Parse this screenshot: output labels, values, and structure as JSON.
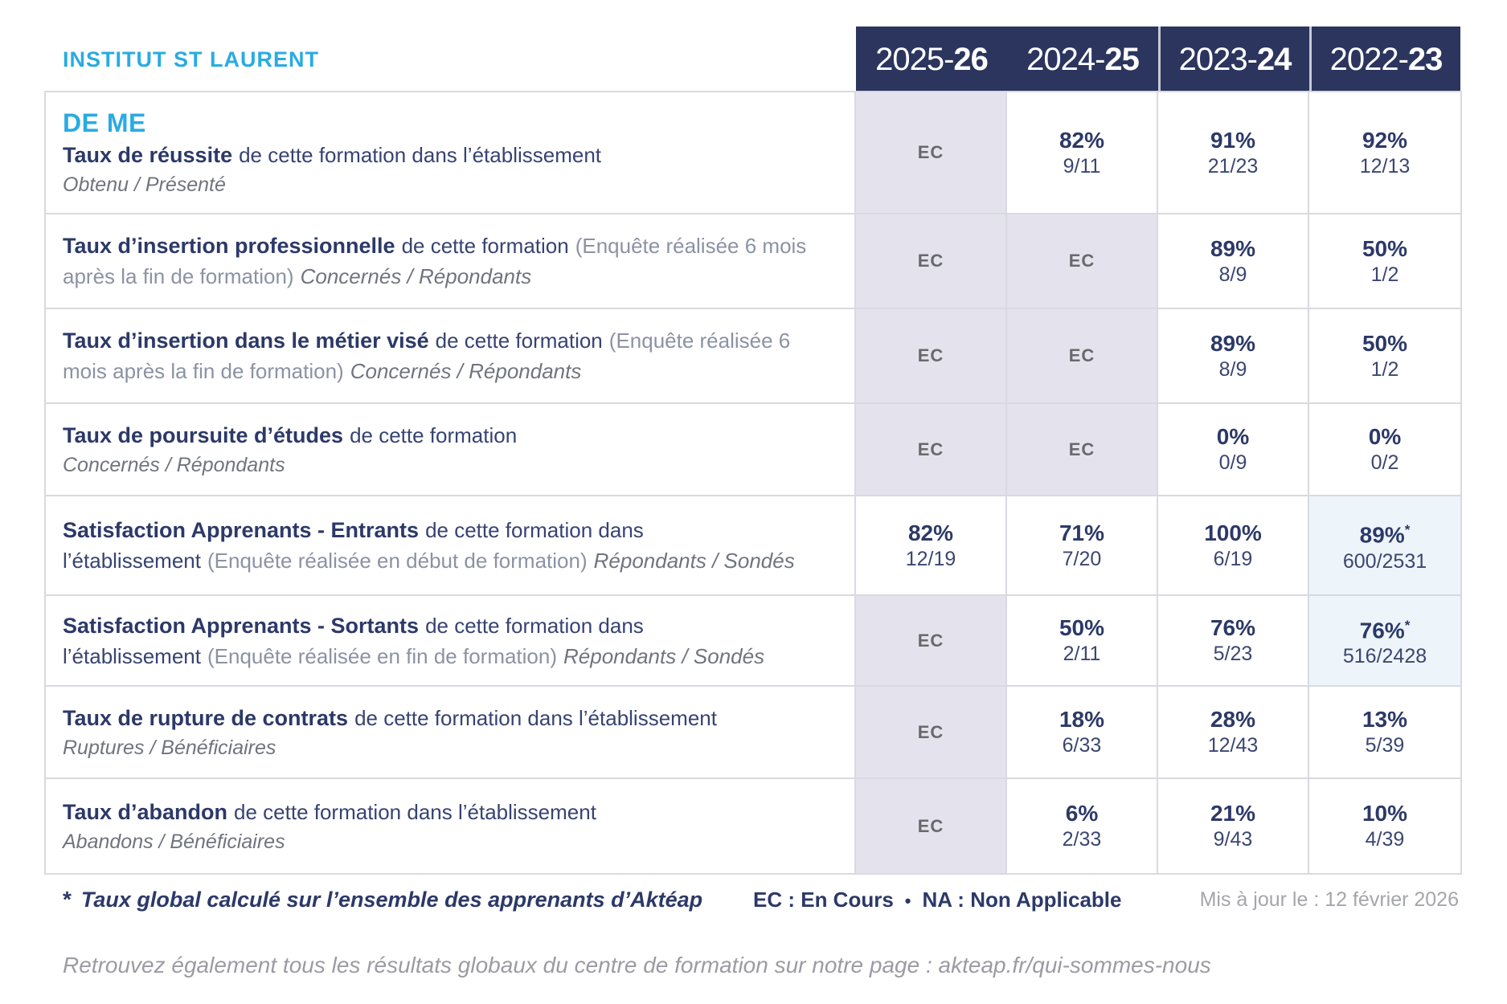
{
  "institute": "INSTITUT ST LAURENT",
  "years": [
    {
      "prefix": "2025-",
      "bold": "26"
    },
    {
      "prefix": "2024-",
      "bold": "25"
    },
    {
      "prefix": "2023-",
      "bold": "24"
    },
    {
      "prefix": "2022-",
      "bold": "23"
    }
  ],
  "rows": [
    {
      "overtitle": "DE ME",
      "title": "Taux de réussite",
      "desc": "de cette formation dans l’établissement",
      "subtitle": "Obtenu / Présenté",
      "cells": [
        {
          "ec": "EC"
        },
        {
          "pct": "82%",
          "frac": "9/11"
        },
        {
          "pct": "91%",
          "frac": "21/23"
        },
        {
          "pct": "92%",
          "frac": "12/13"
        }
      ]
    },
    {
      "title": "Taux d’insertion professionnelle",
      "desc": "de cette formation",
      "paren": "(Enquête réalisée 6 mois après la fin de formation)",
      "inline_sub": "Concernés / Répondants",
      "cells": [
        {
          "ec": "EC"
        },
        {
          "ec": "EC"
        },
        {
          "pct": "89%",
          "frac": "8/9"
        },
        {
          "pct": "50%",
          "frac": "1/2"
        }
      ]
    },
    {
      "title": "Taux d’insertion dans le métier visé",
      "desc": "de cette formation",
      "paren": "(Enquête réalisée 6 mois après la fin de formation)",
      "inline_sub": "Concernés / Répondants",
      "cells": [
        {
          "ec": "EC"
        },
        {
          "ec": "EC"
        },
        {
          "pct": "89%",
          "frac": "8/9"
        },
        {
          "pct": "50%",
          "frac": "1/2"
        }
      ]
    },
    {
      "title": "Taux de poursuite d’études",
      "desc": "de cette formation",
      "subtitle": "Concernés / Répondants",
      "cells": [
        {
          "ec": "EC"
        },
        {
          "ec": "EC"
        },
        {
          "pct": "0%",
          "frac": "0/9"
        },
        {
          "pct": "0%",
          "frac": "0/2"
        }
      ]
    },
    {
      "title": "Satisfaction Apprenants - Entrants",
      "desc": "de cette formation dans l’établissement",
      "paren": "(Enquête réalisée en début de formation)",
      "inline_sub": "Répondants / Sondés",
      "cells": [
        {
          "pct": "82%",
          "frac": "12/19"
        },
        {
          "pct": "71%",
          "frac": "7/20"
        },
        {
          "pct": "100%",
          "frac": "6/19"
        },
        {
          "pct": "89%",
          "sup": "*",
          "frac": "600/2531",
          "highlight": true
        }
      ]
    },
    {
      "title": "Satisfaction Apprenants - Sortants",
      "desc": "de cette formation dans l’établissement",
      "paren": "(Enquête réalisée en fin de formation)",
      "inline_sub": "Répondants / Sondés",
      "cells": [
        {
          "ec": "EC"
        },
        {
          "pct": "50%",
          "frac": "2/11"
        },
        {
          "pct": "76%",
          "frac": "5/23"
        },
        {
          "pct": "76%",
          "sup": "*",
          "frac": "516/2428",
          "highlight": true
        }
      ]
    },
    {
      "title": "Taux de rupture de contrats",
      "desc": "de cette formation dans l’établissement",
      "subtitle": "Ruptures / Bénéficiaires",
      "cells": [
        {
          "ec": "EC"
        },
        {
          "pct": "18%",
          "frac": "6/33"
        },
        {
          "pct": "28%",
          "frac": "12/43"
        },
        {
          "pct": "13%",
          "frac": "5/39"
        }
      ]
    },
    {
      "title": "Taux d’abandon",
      "desc": "de cette formation dans l’établissement",
      "subtitle": "Abandons / Bénéficiaires",
      "cells": [
        {
          "ec": "EC"
        },
        {
          "pct": "6%",
          "frac": "2/33"
        },
        {
          "pct": "21%",
          "frac": "9/43"
        },
        {
          "pct": "10%",
          "frac": "4/39"
        }
      ]
    }
  ],
  "footnote": {
    "star": "*",
    "text": "Taux global calculé sur l’ensemble des apprenants d’Aktéap"
  },
  "legend": {
    "ec": "EC : En Cours",
    "sep": "•",
    "na": "NA : Non Applicable"
  },
  "updated": "Mis à jour le : 12 février 2026",
  "bottom_note": {
    "prefix": "Retrouvez également tous les résultats globaux du centre de formation sur notre page : ",
    "link": "akteap.fr/qui-sommes-nous"
  },
  "colors": {
    "accent-blue": "#29abe2",
    "navy-bg": "#2b355e",
    "navy-text": "#2c3968",
    "ec-bg": "#e4e3ed",
    "ec-text": "#68696c",
    "highlight-bg": "#edf5fa",
    "border": "#d9d9e2",
    "footer-gray": "#a5a6ab",
    "note-gray": "#9b9ba3"
  }
}
